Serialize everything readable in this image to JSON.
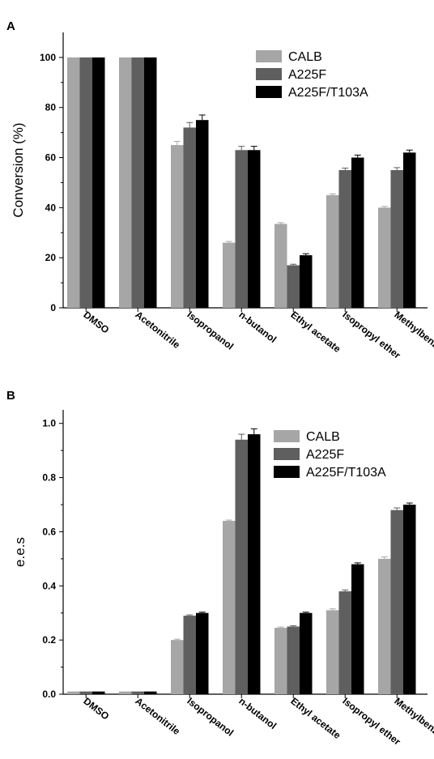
{
  "panels": [
    {
      "panel_label": "A",
      "chart_data": {
        "type": "bar",
        "title": "",
        "xlabel": "",
        "ylabel": "Conversion (%)",
        "ylim": [
          0,
          110
        ],
        "yticks": [
          0,
          20,
          40,
          60,
          80,
          100
        ],
        "yticklabels": [
          "0",
          "20",
          "40",
          "60",
          "80",
          "100"
        ],
        "grid": false,
        "legend_position": "top-right",
        "categories": [
          "DMSO",
          "Acetonitrile",
          "Isopropanol",
          "n-butanol",
          "Ethyl acetate",
          "Isopropyl ether",
          "Methylbenzene"
        ],
        "series": [
          {
            "name": "CALB",
            "color": "#a6a6a6",
            "values": [
              100,
              100,
              65,
              26,
              33.5,
              45,
              40
            ],
            "errors": [
              0,
              0,
              1.5,
              0.5,
              0.5,
              0.5,
              0.5
            ]
          },
          {
            "name": "A225F",
            "color": "#5f5f5f",
            "values": [
              100,
              100,
              72,
              63,
              17,
              55,
              55
            ],
            "errors": [
              0,
              0,
              2,
              1.5,
              0.4,
              0.8,
              1
            ]
          },
          {
            "name": "A225F/T103A",
            "color": "#000000",
            "values": [
              100,
              100,
              75,
              63,
              21,
              60,
              62
            ],
            "errors": [
              0,
              0,
              2,
              1.5,
              0.6,
              1,
              1
            ]
          }
        ]
      }
    },
    {
      "panel_label": "B",
      "chart_data": {
        "type": "bar",
        "title": "",
        "xlabel": "",
        "ylabel": "e.e.s",
        "ylim": [
          0,
          1.05
        ],
        "yticks": [
          0,
          0.2,
          0.4,
          0.6,
          0.8,
          1.0
        ],
        "yticklabels": [
          "0.0",
          "0.2",
          "0.4",
          "0.6",
          "0.8",
          "1.0"
        ],
        "grid": false,
        "legend_position": "top-right",
        "categories": [
          "DMSO",
          "Acetonitrile",
          "Isopropanol",
          "n-butanol",
          "Ethyl acetate",
          "Isopropyl ether",
          "Methylbenzene"
        ],
        "series": [
          {
            "name": "CALB",
            "color": "#a6a6a6",
            "values": [
              0.01,
              0.01,
              0.2,
              0.64,
              0.245,
              0.31,
              0.5
            ],
            "errors": [
              0,
              0,
              0.003,
              0.003,
              0.003,
              0.005,
              0.007
            ]
          },
          {
            "name": "A225F",
            "color": "#5f5f5f",
            "values": [
              0.01,
              0.01,
              0.29,
              0.94,
              0.25,
              0.38,
              0.68
            ],
            "errors": [
              0,
              0,
              0.003,
              0.02,
              0.003,
              0.005,
              0.008
            ]
          },
          {
            "name": "A225F/T103A",
            "color": "#000000",
            "values": [
              0.01,
              0.01,
              0.3,
              0.96,
              0.3,
              0.48,
              0.7
            ],
            "errors": [
              0,
              0,
              0.003,
              0.02,
              0.003,
              0.005,
              0.006
            ]
          }
        ]
      }
    }
  ]
}
